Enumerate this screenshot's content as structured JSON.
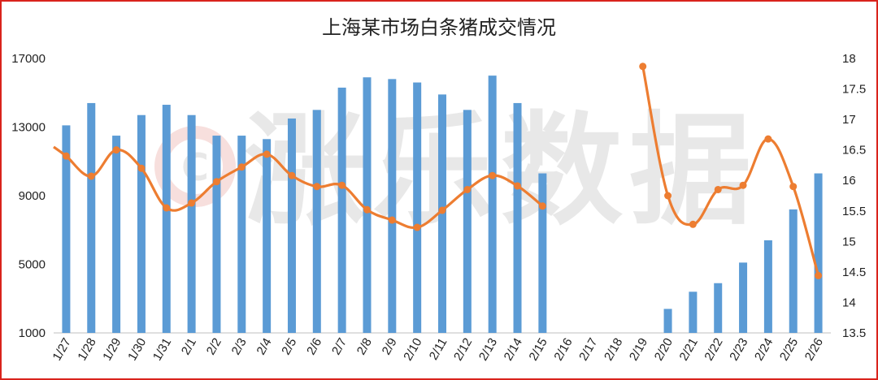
{
  "chart_data": {
    "type": "bar+line",
    "title": "上海某市场白条猪成交情况",
    "categories": [
      "1/27",
      "1/28",
      "1/29",
      "1/30",
      "1/31",
      "2/1",
      "2/2",
      "2/3",
      "2/4",
      "2/5",
      "2/6",
      "2/7",
      "2/8",
      "2/9",
      "2/10",
      "2/11",
      "2/12",
      "2/13",
      "2/14",
      "2/15",
      "2/16",
      "2/17",
      "2/18",
      "2/19",
      "2/20",
      "2/21",
      "2/22",
      "2/23",
      "2/24",
      "2/25",
      "2/26"
    ],
    "left_axis": {
      "ylim": [
        1000,
        17000
      ],
      "ticks": [
        "1000",
        "5000",
        "9000",
        "13000",
        "17000"
      ]
    },
    "right_axis": {
      "ylim": [
        13.5,
        18
      ],
      "ticks": [
        "13.5",
        "14",
        "14.5",
        "15",
        "15.5",
        "16",
        "16.5",
        "17",
        "17.5",
        "18"
      ]
    },
    "series": [
      {
        "type": "bar",
        "axis": "left",
        "color": "#5b9bd5",
        "values": [
          13100,
          14400,
          12500,
          13700,
          14300,
          13700,
          12500,
          12500,
          12300,
          13500,
          14000,
          15300,
          15900,
          15800,
          15600,
          14900,
          14000,
          16000,
          14400,
          10300,
          null,
          null,
          null,
          null,
          2400,
          3400,
          3900,
          5100,
          6400,
          8200,
          10300
        ]
      },
      {
        "type": "line",
        "axis": "right",
        "color": "#ed7d31",
        "values": [
          16.4,
          16.07,
          16.5,
          16.2,
          15.55,
          15.63,
          15.98,
          16.22,
          16.43,
          16.08,
          15.9,
          15.92,
          15.52,
          15.35,
          15.23,
          15.51,
          15.85,
          16.08,
          15.91,
          15.58,
          null,
          null,
          null,
          17.87,
          15.75,
          15.28,
          15.85,
          15.92,
          16.68,
          15.9,
          14.44
        ]
      }
    ],
    "grid": false,
    "legend": "none"
  },
  "watermark": {
    "text": "涨乐数据",
    "logo": "C"
  },
  "colors": {
    "frame": "#d9231c",
    "bar": "#5b9bd5",
    "line": "#ed7d31"
  }
}
